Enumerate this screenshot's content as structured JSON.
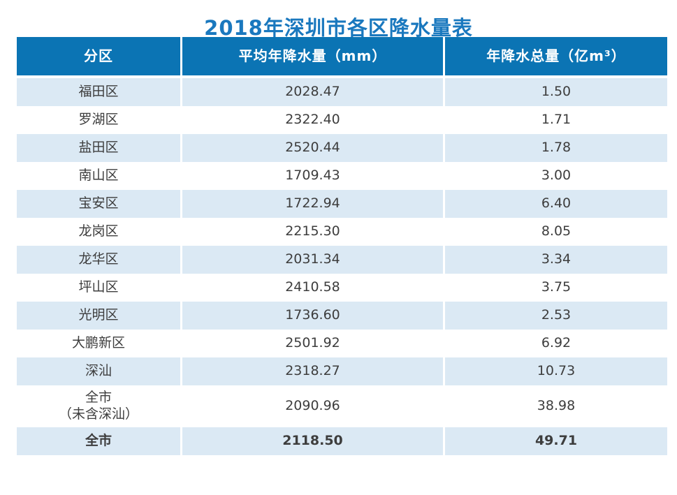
{
  "title": "2018年深圳市各区降水量表",
  "colors": {
    "title_blue": "#1a78be",
    "header_bg": "#0b74b4",
    "header_text": "#ffffff",
    "alt_row_bg": "#dbe9f4",
    "body_text": "#3d3d3d"
  },
  "table": {
    "columns": [
      "分区",
      "平均年降水量（mm）",
      "年降水总量（亿m³）"
    ],
    "rows": [
      {
        "district": "福田区",
        "avg_mm": "2028.47",
        "total": "1.50"
      },
      {
        "district": "罗湖区",
        "avg_mm": "2322.40",
        "total": "1.71"
      },
      {
        "district": "盐田区",
        "avg_mm": "2520.44",
        "total": "1.78"
      },
      {
        "district": "南山区",
        "avg_mm": "1709.43",
        "total": "3.00"
      },
      {
        "district": "宝安区",
        "avg_mm": "1722.94",
        "total": "6.40"
      },
      {
        "district": "龙岗区",
        "avg_mm": "2215.30",
        "total": "8.05"
      },
      {
        "district": "龙华区",
        "avg_mm": "2031.34",
        "total": "3.34"
      },
      {
        "district": "坪山区",
        "avg_mm": "2410.58",
        "total": "3.75"
      },
      {
        "district": "光明区",
        "avg_mm": "1736.60",
        "total": "2.53"
      },
      {
        "district": "大鹏新区",
        "avg_mm": "2501.92",
        "total": "6.92"
      },
      {
        "district": "深汕",
        "avg_mm": "2318.27",
        "total": "10.73"
      },
      {
        "district": "全市\n（未含深汕）",
        "avg_mm": "2090.96",
        "total": "38.98"
      },
      {
        "district": "全市",
        "avg_mm": "2118.50",
        "total": "49.71"
      }
    ]
  },
  "chart_data": {
    "type": "table",
    "title": "2018年深圳市各区降水量表",
    "columns": [
      "分区",
      "平均年降水量（mm）",
      "年降水总量（亿m³）"
    ],
    "rows": [
      [
        "福田区",
        2028.47,
        1.5
      ],
      [
        "罗湖区",
        2322.4,
        1.71
      ],
      [
        "盐田区",
        2520.44,
        1.78
      ],
      [
        "南山区",
        1709.43,
        3.0
      ],
      [
        "宝安区",
        1722.94,
        6.4
      ],
      [
        "龙岗区",
        2215.3,
        8.05
      ],
      [
        "龙华区",
        2031.34,
        3.34
      ],
      [
        "坪山区",
        2410.58,
        3.75
      ],
      [
        "光明区",
        1736.6,
        2.53
      ],
      [
        "大鹏新区",
        2501.92,
        6.92
      ],
      [
        "深汕",
        2318.27,
        10.73
      ],
      [
        "全市（未含深汕）",
        2090.96,
        38.98
      ],
      [
        "全市",
        2118.5,
        49.71
      ]
    ]
  }
}
